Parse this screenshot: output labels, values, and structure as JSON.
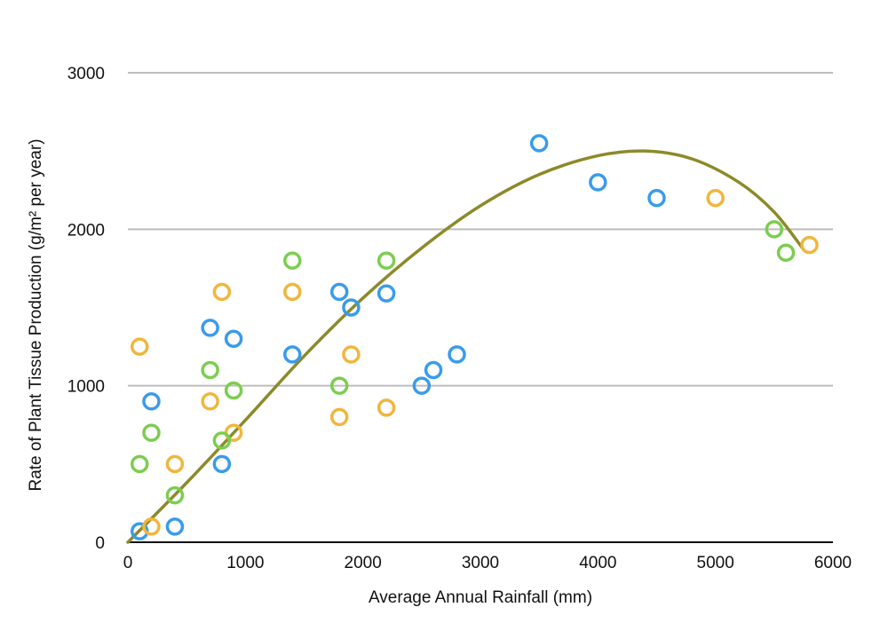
{
  "chart_data": {
    "type": "scatter",
    "xlabel": "Average Annual Rainfall (mm)",
    "ylabel": "Rate of Plant Tissue Production (g/m² per year)",
    "xlim": [
      0,
      6000
    ],
    "ylim": [
      0,
      3000
    ],
    "x_ticks": [
      "0",
      "1000",
      "2000",
      "3000",
      "4000",
      "5000",
      "6000"
    ],
    "y_ticks": [
      "0",
      "1000",
      "2000",
      "3000"
    ],
    "grid": "horizontal",
    "legend": "none",
    "series": [
      {
        "color": "#3a9bea",
        "points": [
          {
            "x": 100,
            "y": 70
          },
          {
            "x": 200,
            "y": 900
          },
          {
            "x": 400,
            "y": 100
          },
          {
            "x": 700,
            "y": 1370
          },
          {
            "x": 800,
            "y": 500
          },
          {
            "x": 900,
            "y": 1300
          },
          {
            "x": 1400,
            "y": 1200
          },
          {
            "x": 1800,
            "y": 1600
          },
          {
            "x": 1900,
            "y": 1500
          },
          {
            "x": 2200,
            "y": 1590
          },
          {
            "x": 2500,
            "y": 1000
          },
          {
            "x": 2600,
            "y": 1100
          },
          {
            "x": 2800,
            "y": 1200
          },
          {
            "x": 3500,
            "y": 2550
          },
          {
            "x": 4000,
            "y": 2300
          },
          {
            "x": 4500,
            "y": 2200
          }
        ]
      },
      {
        "color": "#f0b63c",
        "points": [
          {
            "x": 100,
            "y": 1250
          },
          {
            "x": 200,
            "y": 100
          },
          {
            "x": 400,
            "y": 500
          },
          {
            "x": 700,
            "y": 900
          },
          {
            "x": 800,
            "y": 1600
          },
          {
            "x": 900,
            "y": 700
          },
          {
            "x": 1400,
            "y": 1600
          },
          {
            "x": 1800,
            "y": 800
          },
          {
            "x": 1900,
            "y": 1200
          },
          {
            "x": 2200,
            "y": 860
          },
          {
            "x": 5000,
            "y": 2200
          },
          {
            "x": 5800,
            "y": 1900
          }
        ]
      },
      {
        "color": "#7ccd4f",
        "points": [
          {
            "x": 100,
            "y": 500
          },
          {
            "x": 200,
            "y": 700
          },
          {
            "x": 400,
            "y": 300
          },
          {
            "x": 700,
            "y": 1100
          },
          {
            "x": 800,
            "y": 650
          },
          {
            "x": 900,
            "y": 970
          },
          {
            "x": 1400,
            "y": 1800
          },
          {
            "x": 1800,
            "y": 1000
          },
          {
            "x": 2200,
            "y": 1800
          },
          {
            "x": 5500,
            "y": 2000
          },
          {
            "x": 5600,
            "y": 1850
          }
        ]
      }
    ],
    "trendline": {
      "color": "#8c8a2a",
      "points": [
        {
          "x": 0,
          "y": 0
        },
        {
          "x": 500,
          "y": 380
        },
        {
          "x": 1000,
          "y": 780
        },
        {
          "x": 1500,
          "y": 1190
        },
        {
          "x": 2000,
          "y": 1560
        },
        {
          "x": 2500,
          "y": 1880
        },
        {
          "x": 3000,
          "y": 2150
        },
        {
          "x": 3500,
          "y": 2350
        },
        {
          "x": 4000,
          "y": 2470
        },
        {
          "x": 4400,
          "y": 2500
        },
        {
          "x": 4800,
          "y": 2450
        },
        {
          "x": 5200,
          "y": 2300
        },
        {
          "x": 5500,
          "y": 2110
        },
        {
          "x": 5750,
          "y": 1870
        }
      ]
    }
  }
}
